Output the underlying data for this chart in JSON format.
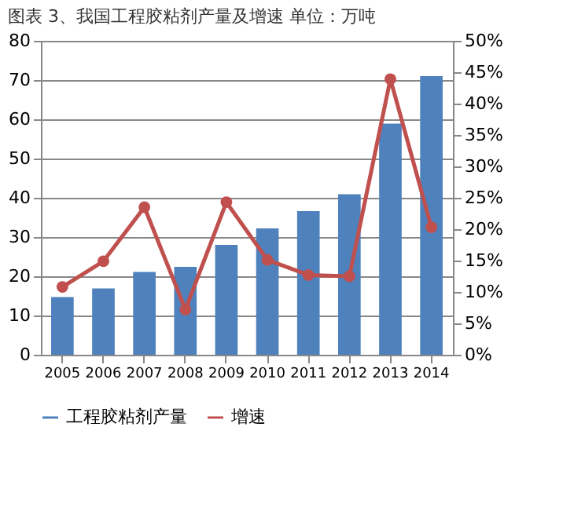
{
  "chart_data": {
    "type": "bar",
    "title": "图表 3、我国工程胶粘剂产量及增速 单位：万吨",
    "categories": [
      "2005",
      "2006",
      "2007",
      "2008",
      "2009",
      "2010",
      "2011",
      "2012",
      "2013",
      "2014"
    ],
    "series": [
      {
        "name": "工程胶粘剂产量",
        "color": "#4f81bd",
        "values": [
          14.7,
          16.9,
          21.1,
          22.4,
          28.0,
          32.2,
          36.6,
          40.9,
          58.9,
          71.0
        ]
      },
      {
        "name": "增速",
        "type": "line",
        "axis": "y2",
        "color": "#c0504d",
        "marker": "circle",
        "values": [
          10.8,
          14.9,
          23.5,
          7.2,
          24.3,
          15.1,
          12.7,
          12.5,
          43.9,
          20.3
        ]
      }
    ],
    "ylim": [
      0,
      80
    ],
    "yticks": [
      0,
      10,
      20,
      30,
      40,
      50,
      60,
      70,
      80
    ],
    "y2lim": [
      0,
      50
    ],
    "y2ticks": [
      {
        "value": 0,
        "label": "0%"
      },
      {
        "value": 5,
        "label": "5%"
      },
      {
        "value": 10,
        "label": "10%"
      },
      {
        "value": 15,
        "label": "15%"
      },
      {
        "value": 20,
        "label": "20%"
      },
      {
        "value": 25,
        "label": "25%"
      },
      {
        "value": 30,
        "label": "30%"
      },
      {
        "value": 35,
        "label": "35%"
      },
      {
        "value": 40,
        "label": "40%"
      },
      {
        "value": 45,
        "label": "45%"
      },
      {
        "value": 50,
        "label": "50%"
      }
    ],
    "grid": "y",
    "legend": "bottom"
  }
}
